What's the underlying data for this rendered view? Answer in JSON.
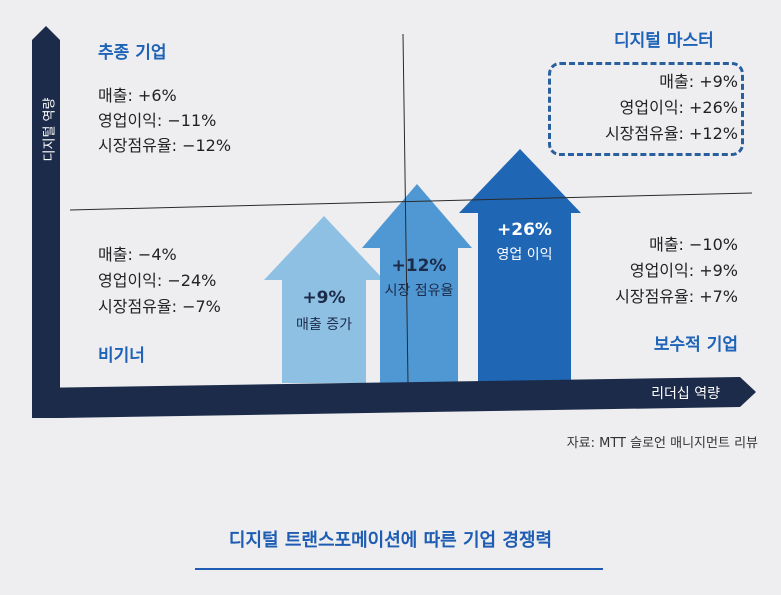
{
  "axes": {
    "x_label": "리더십 역량",
    "y_label": "디지털 역량"
  },
  "quadrants": {
    "top_left": {
      "title": "추종 기업",
      "stats": [
        "매출: +6%",
        "영업이익: −11%",
        "시장점유율: −12%"
      ]
    },
    "top_right": {
      "title": "디지털 마스터",
      "stats": [
        "매출: +9%",
        "영업이익: +26%",
        "시장점유율: +12%"
      ]
    },
    "bottom_left": {
      "title": "비기너",
      "stats": [
        "매출: −4%",
        "영업이익: −24%",
        "시장점유율: −7%"
      ]
    },
    "bottom_right": {
      "title": "보수적 기업",
      "stats": [
        "매출: −10%",
        "영업이익: +9%",
        "시장점유율: +7%"
      ]
    }
  },
  "arrows": [
    {
      "value": "+9%",
      "caption": "매출 증가",
      "color": "#8ec0e4"
    },
    {
      "value": "+12%",
      "caption": "시장 점유율",
      "color": "#4a95d2"
    },
    {
      "value": "+26%",
      "caption": "영업 이익",
      "color": "#1f66b5"
    }
  ],
  "source": "자료: MTT 슬로언 매니지먼트 리뷰",
  "footer_title": "디지털 트랜스포메이션에 따른 기업 경쟁력",
  "colors": {
    "axis": "#1c2b4a",
    "accent": "#1e5db3"
  }
}
